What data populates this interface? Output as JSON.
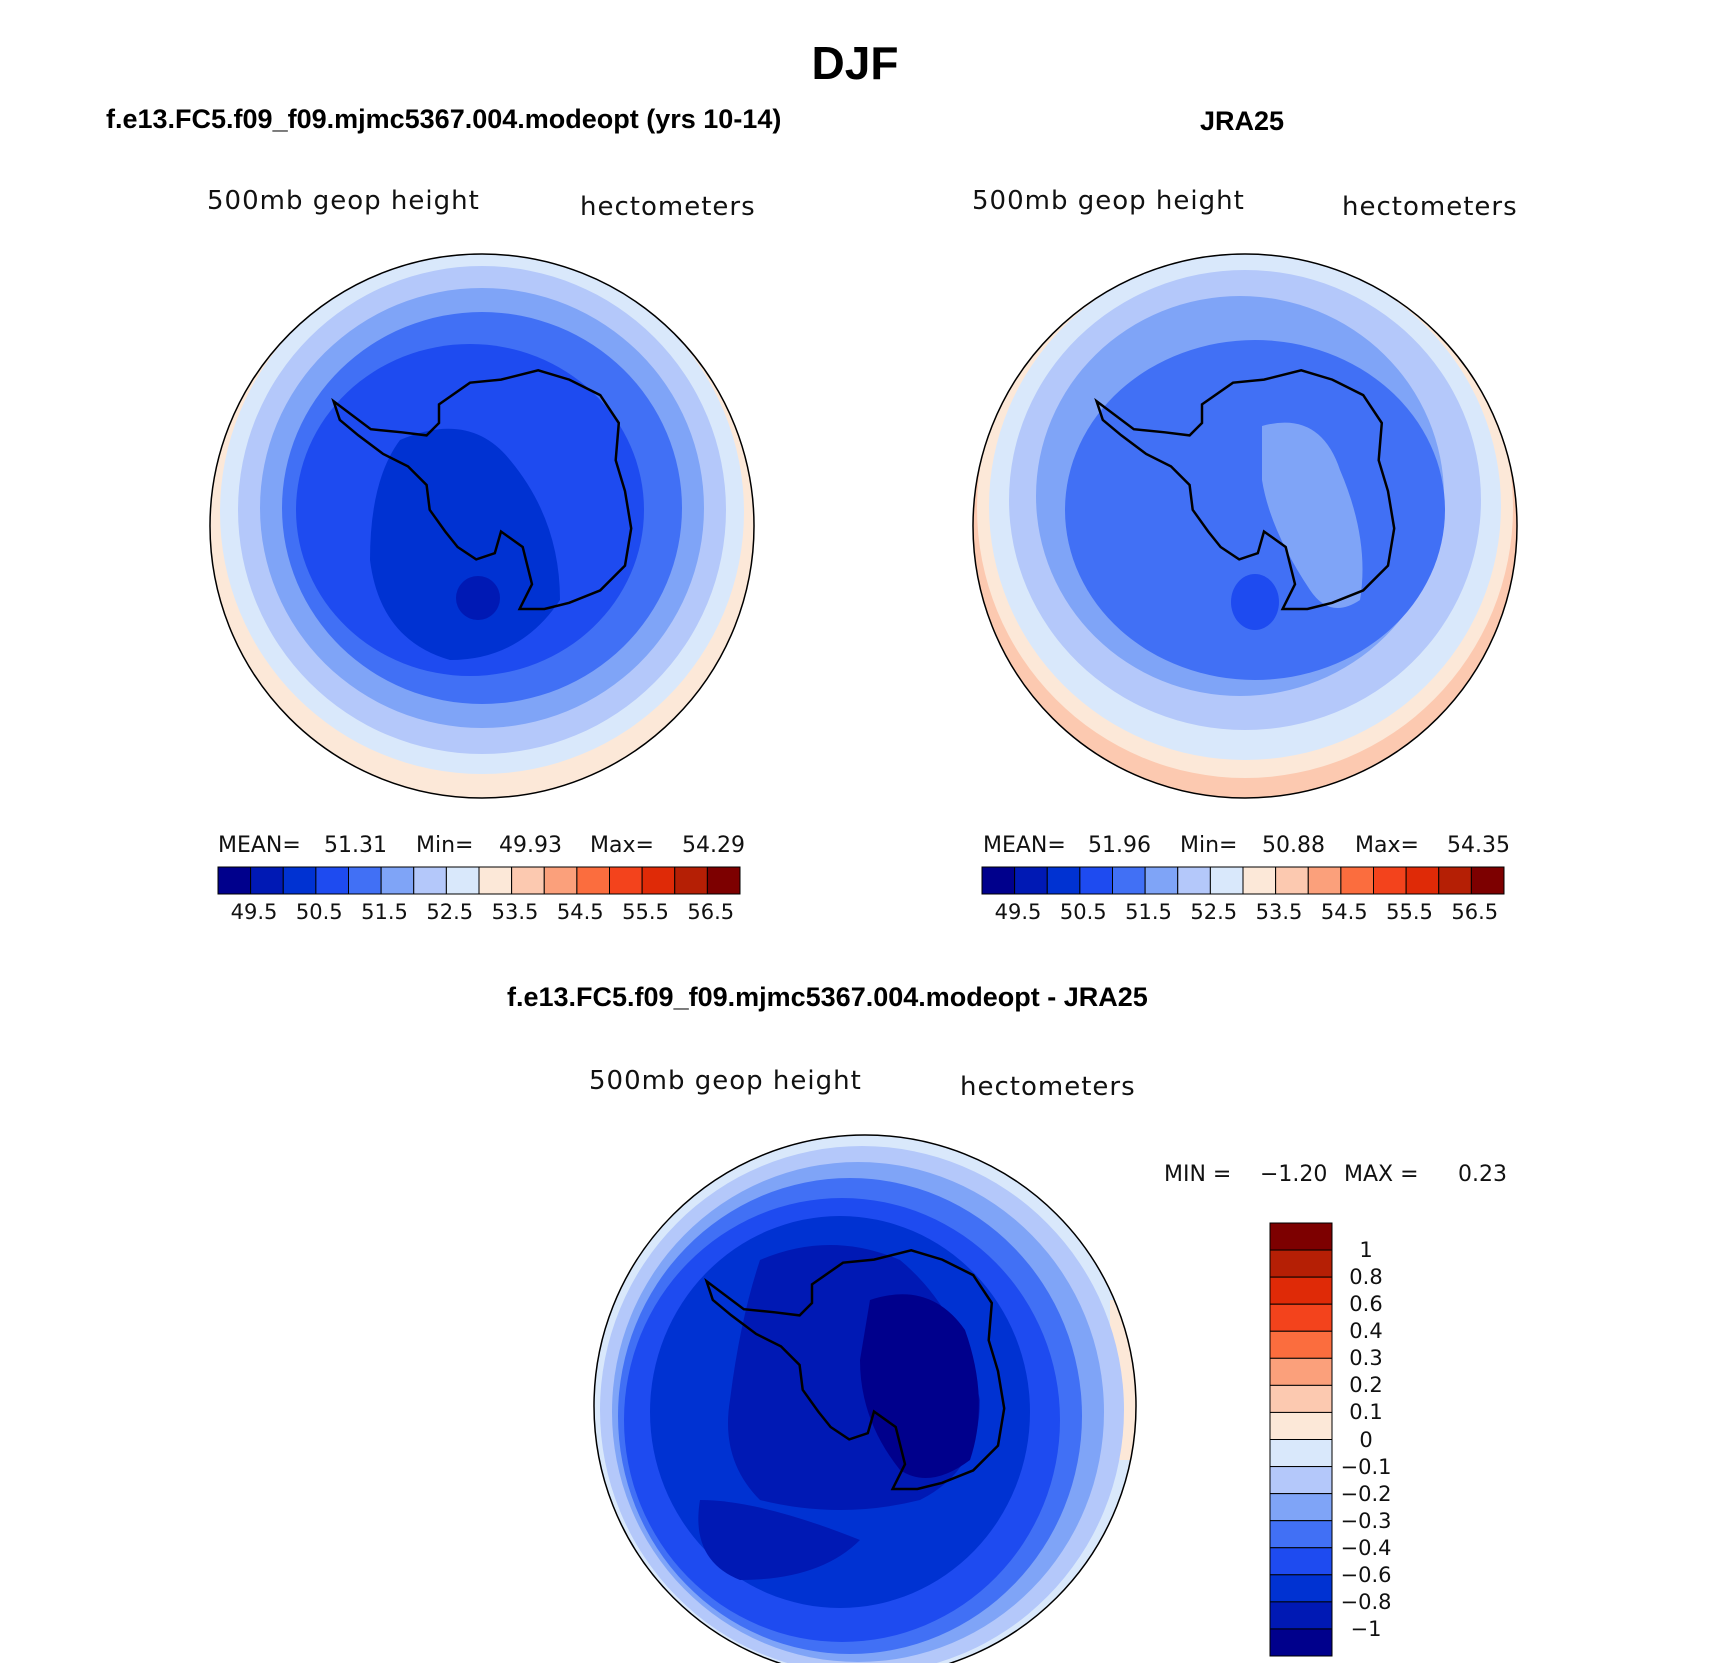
{
  "main_title": "DJF",
  "panels": [
    {
      "title": "f.e13.FC5.f09_f09.mjmc5367.004.modeopt (yrs 10-14)",
      "field_label": "500mb geop height",
      "units_label": "hectometers",
      "stats": {
        "mean_label": "MEAN=",
        "mean": "51.31",
        "min_label": "Min=",
        "min": "49.93",
        "max_label": "Max=",
        "max": "54.29"
      }
    },
    {
      "title": "JRA25",
      "field_label": "500mb geop height",
      "units_label": "hectometers",
      "stats": {
        "mean_label": "MEAN=",
        "mean": "51.96",
        "min_label": "Min=",
        "min": "50.88",
        "max_label": "Max=",
        "max": "54.35"
      }
    }
  ],
  "abs_colorbar": {
    "colors": [
      "#00008c",
      "#0019b4",
      "#0032d2",
      "#1e4bf0",
      "#4170f5",
      "#7fa4f7",
      "#b4c8fa",
      "#d9e8fb",
      "#fce8d8",
      "#fcc9b0",
      "#fba07b",
      "#fb6d3e",
      "#f3431c",
      "#df2a07",
      "#b51f05",
      "#7d0000"
    ],
    "tick_labels": [
      "49.5",
      "50.5",
      "51.5",
      "52.5",
      "53.5",
      "54.5",
      "55.5",
      "56.5"
    ]
  },
  "diff_panel": {
    "title": "f.e13.FC5.f09_f09.mjmc5367.004.modeopt - JRA25",
    "field_label": "500mb geop height",
    "units_label": "hectometers",
    "stats": {
      "min_label": "MIN =",
      "min": "−1.20",
      "max_label": "MAX =",
      "max": "0.23"
    },
    "colorbar": {
      "colors": [
        "#00008c",
        "#0019b4",
        "#0032d2",
        "#1e4bf0",
        "#4170f5",
        "#7fa4f7",
        "#b4c8fa",
        "#d9e8fb",
        "#fce8d8",
        "#fcc9b0",
        "#fba07b",
        "#fb6d3e",
        "#f3431c",
        "#df2a07",
        "#b51f05",
        "#7d0000"
      ],
      "tick_labels": [
        "−1",
        "−0.8",
        "−0.6",
        "−0.4",
        "−0.3",
        "−0.2",
        "−0.1",
        "0",
        "0.1",
        "0.2",
        "0.3",
        "0.4",
        "0.6",
        "0.8",
        "1"
      ]
    }
  }
}
